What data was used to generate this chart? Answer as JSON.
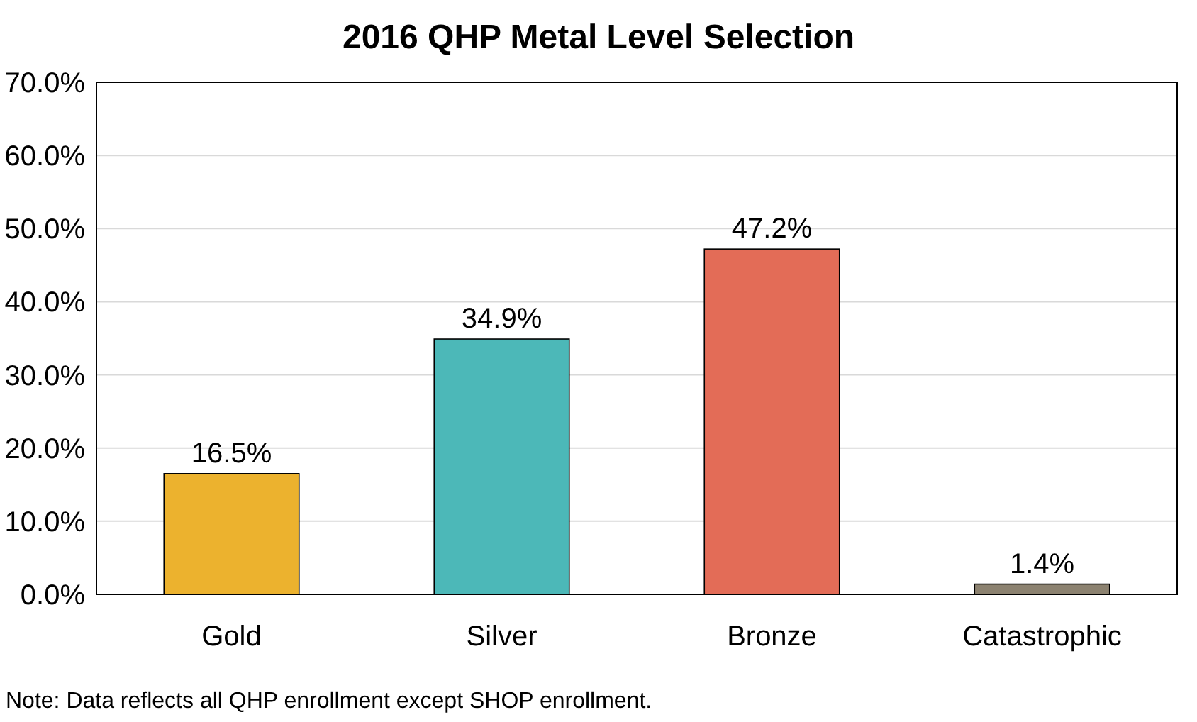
{
  "chart_data": {
    "type": "bar",
    "title": "2016 QHP Metal Level Selection",
    "categories": [
      "Gold",
      "Silver",
      "Bronze",
      "Catastrophic"
    ],
    "values": [
      16.5,
      34.9,
      47.2,
      1.4
    ],
    "colors": [
      "#ecb22e",
      "#4cb8b8",
      "#e36c57",
      "#8c8270"
    ],
    "value_labels": [
      "16.5%",
      "34.9%",
      "47.2%",
      "1.4%"
    ],
    "ylim": [
      0,
      70
    ],
    "yticks": [
      {
        "value": 0,
        "label": "0.0%"
      },
      {
        "value": 10,
        "label": "10.0%"
      },
      {
        "value": 20,
        "label": "20.0%"
      },
      {
        "value": 30,
        "label": "30.0%"
      },
      {
        "value": 40,
        "label": "40.0%"
      },
      {
        "value": 50,
        "label": "50.0%"
      },
      {
        "value": 60,
        "label": "60.0%"
      },
      {
        "value": 70,
        "label": "70.0%"
      }
    ],
    "grid": "y",
    "annotations": [
      "Note: Data reflects all QHP enrollment except SHOP enrollment."
    ]
  }
}
